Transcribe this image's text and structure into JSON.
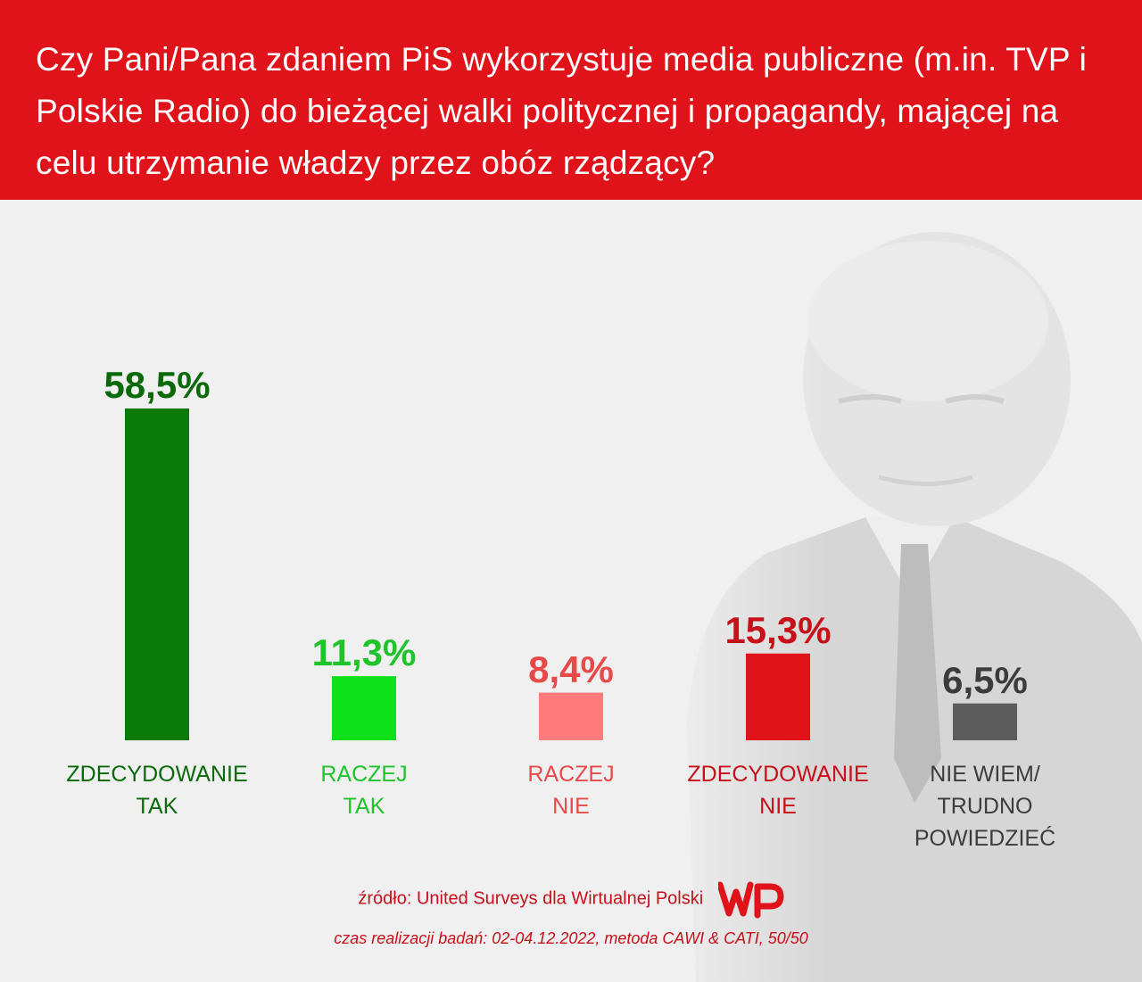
{
  "title": "Czy Pani/Pana zdaniem PiS wykorzystuje media publiczne (m.in. TVP i Polskie Radio) do bieżącej walki politycznej i propagandy, mającej na celu utrzymanie władzy przez obóz rządzący?",
  "chart_data": {
    "type": "bar",
    "title": "Czy Pani/Pana zdaniem PiS wykorzystuje media publiczne (m.in. TVP i Polskie Radio) do bieżącej walki politycznej i propagandy, mającej na celu utrzymanie władzy przez obóz rządzący?",
    "categories": [
      "ZDECYDOWANIE\nTAK",
      "RACZEJ\nTAK",
      "RACZEJ\nNIE",
      "ZDECYDOWANIE\nNIE",
      "NIE WIEM/\nTRUDNO\nPOWIEDZIEĆ"
    ],
    "values": [
      58.5,
      11.3,
      8.4,
      15.3,
      6.5
    ],
    "value_labels": [
      "58,5%",
      "11,3%",
      "8,4%",
      "15,3%",
      "6,5%"
    ],
    "bar_colors": [
      "#0a7a0a",
      "#0ee01a",
      "#ff7a7a",
      "#e0121a",
      "#5c5c5c"
    ],
    "label_colors": [
      "#0a6a0a",
      "#1ec42a",
      "#e84a4a",
      "#c8101a",
      "#3c3c3c"
    ],
    "xlabel": "",
    "ylabel": "",
    "ylim": [
      0,
      58.5
    ],
    "grid": false,
    "legend": "none"
  },
  "source": "źródło: United Surveys dla Wirtualnej Polski",
  "logo_text": "WP",
  "method": "czas realizacji badań: 02-04.12.2022, metoda CAWI & CATI, 50/50",
  "colors": {
    "header_bg": "#e0121a",
    "page_bg": "#f0f0f0",
    "footer_text": "#c8101a"
  }
}
